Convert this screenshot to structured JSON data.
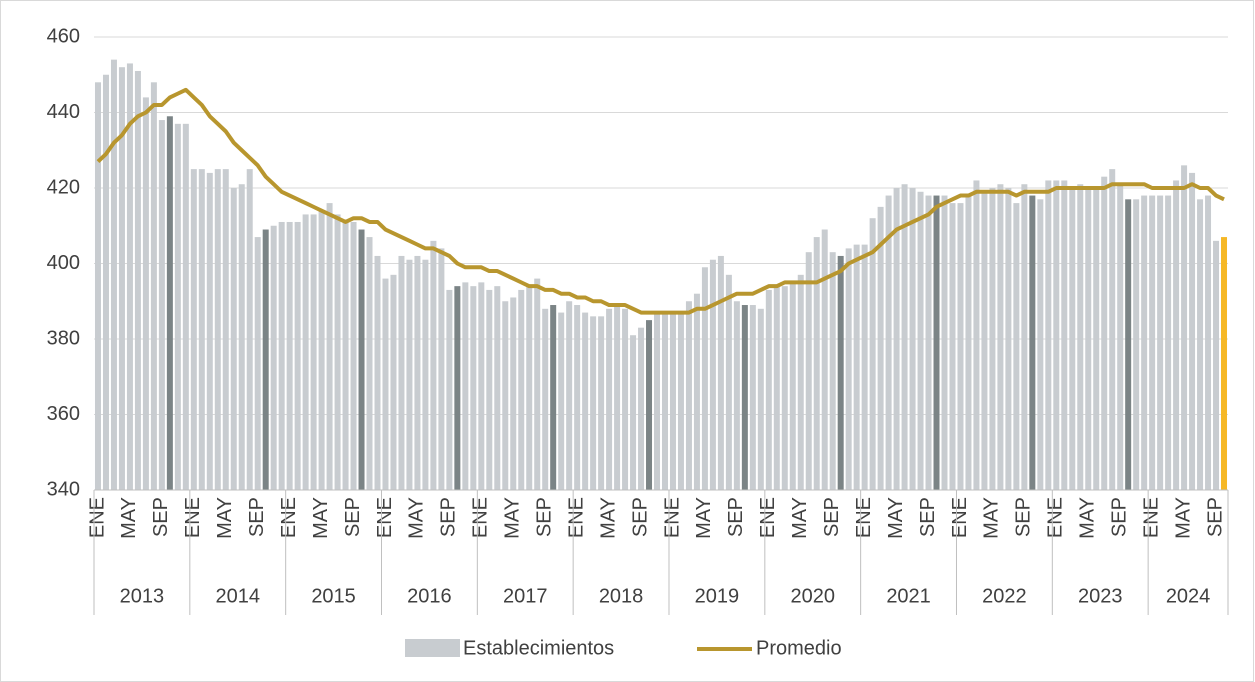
{
  "chart_data": {
    "type": "bar",
    "categories": [
      "ENE",
      null,
      null,
      null,
      "MAY",
      null,
      null,
      null,
      "SEP",
      null,
      null,
      null,
      "ENE",
      null,
      null,
      null,
      "MAY",
      null,
      null,
      null,
      "SEP",
      null,
      null,
      null,
      "ENE",
      null,
      null,
      null,
      "MAY",
      null,
      null,
      null,
      "SEP",
      null,
      null,
      null,
      "ENE",
      null,
      null,
      null,
      "MAY",
      null,
      null,
      null,
      "SEP",
      null,
      null,
      null,
      "ENE",
      null,
      null,
      null,
      "MAY",
      null,
      null,
      null,
      "SEP",
      null,
      null,
      null,
      "ENE",
      null,
      null,
      null,
      "MAY",
      null,
      null,
      null,
      "SEP",
      null,
      null,
      null,
      "ENE",
      null,
      null,
      null,
      "MAY",
      null,
      null,
      null,
      "SEP",
      null,
      null,
      null,
      "ENE",
      null,
      null,
      null,
      "MAY",
      null,
      null,
      null,
      "SEP",
      null,
      null,
      null,
      "ENE",
      null,
      null,
      null,
      "MAY",
      null,
      null,
      null,
      "SEP",
      null,
      null,
      null,
      "ENE",
      null,
      null,
      null,
      "MAY",
      null,
      null,
      null,
      "SEP",
      null,
      null,
      null,
      "ENE",
      null,
      null,
      null,
      "MAY",
      null,
      null,
      null,
      "SEP",
      null,
      null,
      null,
      "ENE",
      null,
      null,
      null,
      "MAY",
      null,
      null,
      null,
      "SEP",
      null
    ],
    "years": [
      "2013",
      "2014",
      "2015",
      "2016",
      "2017",
      "2018",
      "2019",
      "2020",
      "2021",
      "2022",
      "2023",
      "2024"
    ],
    "ylim": [
      340,
      460
    ],
    "yticks": [
      340,
      360,
      380,
      400,
      420,
      440,
      460
    ],
    "series": [
      {
        "name": "Establecimientos",
        "type": "bar",
        "color": "#c8ccd0",
        "values": [
          448,
          450,
          454,
          452,
          453,
          451,
          444,
          448,
          438,
          439,
          437,
          437,
          425,
          425,
          424,
          425,
          425,
          420,
          421,
          425,
          407,
          409,
          410,
          411,
          411,
          411,
          413,
          413,
          414,
          416,
          413,
          411,
          411,
          409,
          407,
          402,
          396,
          397,
          402,
          401,
          402,
          401,
          406,
          404,
          393,
          394,
          395,
          394,
          395,
          393,
          394,
          390,
          391,
          393,
          394,
          396,
          388,
          389,
          387,
          390,
          389,
          387,
          386,
          386,
          388,
          389,
          388,
          381,
          383,
          385,
          387,
          387,
          387,
          387,
          390,
          392,
          399,
          401,
          402,
          397,
          390,
          389,
          389,
          388,
          393,
          394,
          394,
          395,
          397,
          403,
          407,
          409,
          403,
          402,
          404,
          405,
          405,
          412,
          415,
          418,
          420,
          421,
          420,
          419,
          418,
          418,
          418,
          416,
          416,
          418,
          422,
          419,
          420,
          421,
          420,
          416,
          421,
          418,
          417,
          422,
          422,
          422,
          420,
          421,
          420,
          420,
          423,
          425,
          421,
          417,
          417,
          418,
          418,
          418,
          418,
          422,
          426,
          424,
          417,
          418,
          406,
          407
        ],
        "colors": [
          "#c8ccd0",
          "#c8ccd0",
          "#c8ccd0",
          "#c8ccd0",
          "#c8ccd0",
          "#c8ccd0",
          "#c8ccd0",
          "#c8ccd0",
          "#c8ccd0",
          "#7b8486",
          "#c8ccd0",
          "#c8ccd0",
          "#c8ccd0",
          "#c8ccd0",
          "#c8ccd0",
          "#c8ccd0",
          "#c8ccd0",
          "#c8ccd0",
          "#c8ccd0",
          "#c8ccd0",
          "#c8ccd0",
          "#7b8486",
          "#c8ccd0",
          "#c8ccd0",
          "#c8ccd0",
          "#c8ccd0",
          "#c8ccd0",
          "#c8ccd0",
          "#c8ccd0",
          "#c8ccd0",
          "#c8ccd0",
          "#c8ccd0",
          "#c8ccd0",
          "#7b8486",
          "#c8ccd0",
          "#c8ccd0",
          "#c8ccd0",
          "#c8ccd0",
          "#c8ccd0",
          "#c8ccd0",
          "#c8ccd0",
          "#c8ccd0",
          "#c8ccd0",
          "#c8ccd0",
          "#c8ccd0",
          "#7b8486",
          "#c8ccd0",
          "#c8ccd0",
          "#c8ccd0",
          "#c8ccd0",
          "#c8ccd0",
          "#c8ccd0",
          "#c8ccd0",
          "#c8ccd0",
          "#c8ccd0",
          "#c8ccd0",
          "#c8ccd0",
          "#7b8486",
          "#c8ccd0",
          "#c8ccd0",
          "#c8ccd0",
          "#c8ccd0",
          "#c8ccd0",
          "#c8ccd0",
          "#c8ccd0",
          "#c8ccd0",
          "#c8ccd0",
          "#c8ccd0",
          "#c8ccd0",
          "#7b8486",
          "#c8ccd0",
          "#c8ccd0",
          "#c8ccd0",
          "#c8ccd0",
          "#c8ccd0",
          "#c8ccd0",
          "#c8ccd0",
          "#c8ccd0",
          "#c8ccd0",
          "#c8ccd0",
          "#c8ccd0",
          "#7b8486",
          "#c8ccd0",
          "#c8ccd0",
          "#c8ccd0",
          "#c8ccd0",
          "#c8ccd0",
          "#c8ccd0",
          "#c8ccd0",
          "#c8ccd0",
          "#c8ccd0",
          "#c8ccd0",
          "#c8ccd0",
          "#7b8486",
          "#c8ccd0",
          "#c8ccd0",
          "#c8ccd0",
          "#c8ccd0",
          "#c8ccd0",
          "#c8ccd0",
          "#c8ccd0",
          "#c8ccd0",
          "#c8ccd0",
          "#c8ccd0",
          "#c8ccd0",
          "#7b8486",
          "#c8ccd0",
          "#c8ccd0",
          "#c8ccd0",
          "#c8ccd0",
          "#c8ccd0",
          "#c8ccd0",
          "#c8ccd0",
          "#c8ccd0",
          "#c8ccd0",
          "#c8ccd0",
          "#c8ccd0",
          "#7b8486",
          "#c8ccd0",
          "#c8ccd0",
          "#c8ccd0",
          "#c8ccd0",
          "#c8ccd0",
          "#c8ccd0",
          "#c8ccd0",
          "#c8ccd0",
          "#c8ccd0",
          "#c8ccd0",
          "#c8ccd0",
          "#7b8486",
          "#c8ccd0",
          "#c8ccd0",
          "#c8ccd0",
          "#c8ccd0",
          "#c8ccd0",
          "#c8ccd0",
          "#c8ccd0",
          "#c8ccd0",
          "#c8ccd0",
          "#c8ccd0",
          "#c8ccd0",
          "#f6b826"
        ]
      },
      {
        "name": "Promedio",
        "type": "line",
        "color": "#b8962e",
        "values": [
          427,
          429,
          432,
          434,
          437,
          439,
          440,
          442,
          442,
          444,
          445,
          446,
          444,
          442,
          439,
          437,
          435,
          432,
          430,
          428,
          426,
          423,
          421,
          419,
          418,
          417,
          416,
          415,
          414,
          413,
          412,
          411,
          412,
          412,
          411,
          411,
          409,
          408,
          407,
          406,
          405,
          404,
          404,
          403,
          402,
          400,
          399,
          399,
          399,
          398,
          398,
          397,
          396,
          395,
          394,
          394,
          393,
          393,
          392,
          392,
          391,
          391,
          390,
          390,
          389,
          389,
          389,
          388,
          387,
          387,
          387,
          387,
          387,
          387,
          387,
          388,
          388,
          389,
          390,
          391,
          392,
          392,
          392,
          393,
          394,
          394,
          395,
          395,
          395,
          395,
          395,
          396,
          397,
          398,
          400,
          401,
          402,
          403,
          405,
          407,
          409,
          410,
          411,
          412,
          413,
          415,
          416,
          417,
          418,
          418,
          419,
          419,
          419,
          419,
          419,
          418,
          419,
          419,
          419,
          419,
          420,
          420,
          420,
          420,
          420,
          420,
          420,
          421,
          421,
          421,
          421,
          421,
          420,
          420,
          420,
          420,
          420,
          421,
          420,
          420,
          418,
          417
        ]
      }
    ]
  }
}
